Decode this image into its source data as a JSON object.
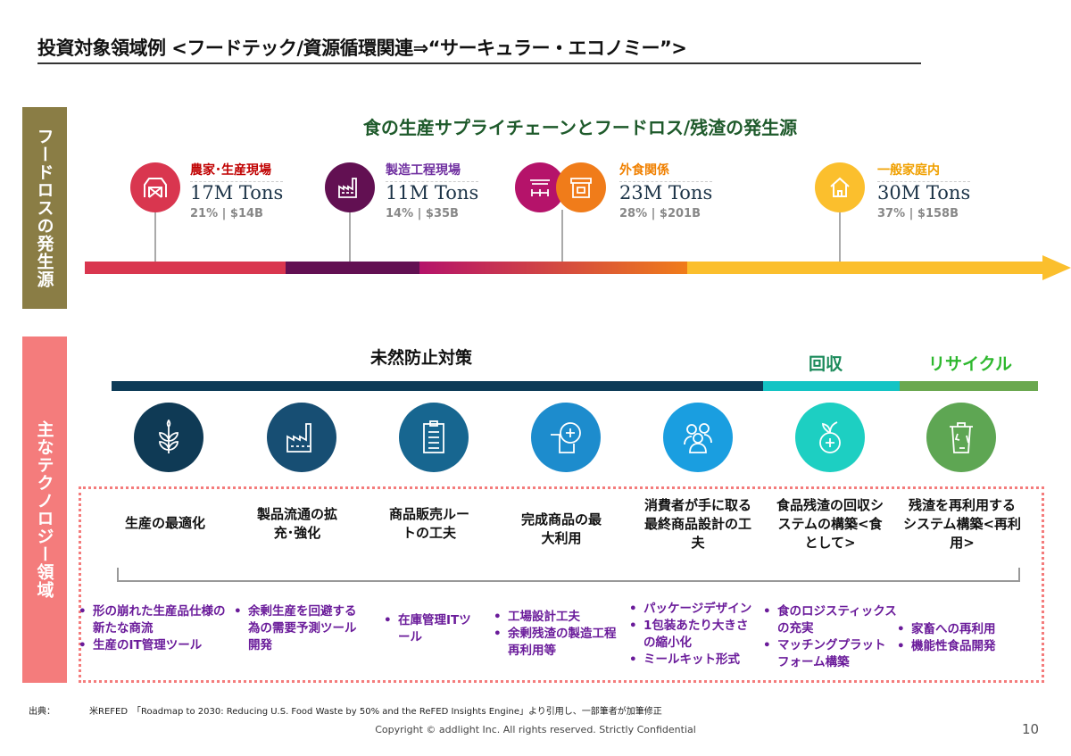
{
  "title": "投資対象領域例 <フードテック/資源循環関連⇒“サーキュラー・エコノミー”>",
  "side_labels": [
    "フードロスの発生源",
    "主なテクノロジー領域"
  ],
  "subtitle": "食の生産サプライチェーンとフードロス/残渣の発生源",
  "stages": [
    {
      "label": "農家･生産現場",
      "tons": "17M Tons",
      "stats": "21% | $14B",
      "icon": "barn-icon",
      "color": "#d9364f",
      "label_color": "#c00000"
    },
    {
      "label": "製造工程現場",
      "tons": "11M Tons",
      "stats": "14% | $35B",
      "icon": "factory-icon",
      "color": "#621052",
      "label_color": "#7030a0"
    },
    {
      "label": "外食関係",
      "tons": "23M Tons",
      "stats": "28% | $201B",
      "icon": "restaurant-icon",
      "color": "#f07c1a",
      "label_color": "#f08000"
    },
    {
      "label": "一般家庭内",
      "tons": "30M Tons",
      "stats": "37% | $158B",
      "icon": "house-icon",
      "color": "#fbbf2d",
      "label_color": "#f0a000"
    }
  ],
  "phases": [
    {
      "label": "未然防止対策",
      "color": "#0d3b57"
    },
    {
      "label": "回収",
      "color": "#13c4c4"
    },
    {
      "label": "リサイクル",
      "color": "#6aa84f"
    }
  ],
  "categories": [
    {
      "title": "生産の最適化",
      "icon": "wheat-icon",
      "color": "#0f3a55",
      "bullets": [
        "形の崩れた生産品仕様の新たな商流",
        "生産のIT管理ツール"
      ]
    },
    {
      "title": "製品流通の拡充･強化",
      "icon": "factory-icon",
      "color": "#174e73",
      "bullets": [
        "余剰生産を回避する為の需要予測ツール開発"
      ]
    },
    {
      "title": "商品販売ルートの工夫",
      "icon": "clipboard-icon",
      "color": "#176690",
      "bullets": [
        "在庫管理ITツール"
      ]
    },
    {
      "title": "完成商品の最大利用",
      "icon": "add-square-icon",
      "color": "#1d8ccd",
      "bullets": [
        "工場設計工夫",
        "余剰残渣の製造工程再利用等"
      ]
    },
    {
      "title": "消費者が手に取る最終商品設計の工夫",
      "icon": "people-icon",
      "color": "#1a9ee0",
      "bullets": [
        "パッケージデザイン",
        "1包装あたり大きさの縮小化",
        "ミールキット形式"
      ]
    },
    {
      "title": "食品残渣の回収システムの構築<食として>",
      "icon": "fruit-plus-icon",
      "color": "#1dcfc2",
      "bullets": [
        "食のロジスティックスの充実",
        "マッチングプラットフォーム構築"
      ]
    },
    {
      "title": "残渣を再利用するシステム構築<再利用>",
      "icon": "recycle-bin-icon",
      "color": "#5ea653",
      "bullets": [
        "家畜への再利用",
        "機能性食品開発"
      ]
    }
  ],
  "source_label": "出典：",
  "source_text": "米REFED　「Roadmap to 2030: Reducing U.S. Food Waste by 50% and the ReFED Insights Engine」より引用し、一部筆者が加筆修正",
  "copyright": "Copyright © addlight Inc. All rights reserved. Strictly Confidential",
  "page_number": "10"
}
